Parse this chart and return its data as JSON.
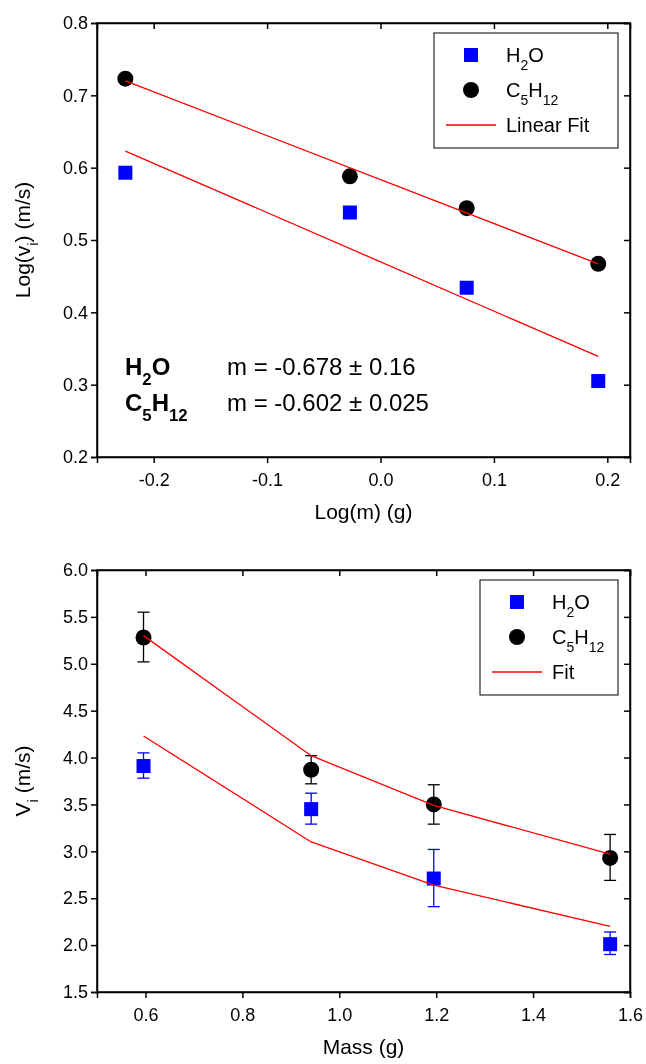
{
  "chart_data": [
    {
      "type": "scatter",
      "xlabel": "Log(m) (g)",
      "ylabel": "Log(v$_{i}$) (m/s)",
      "xlim": [
        -0.25,
        0.22
      ],
      "ylim": [
        0.2,
        0.8
      ],
      "xticks": [
        -0.2,
        -0.1,
        {
          "value": 0,
          "label": "0.0"
        },
        0.1,
        0.2
      ],
      "yticks": [
        0.2,
        0.3,
        0.4,
        0.5,
        0.6,
        0.7,
        0.8
      ],
      "legend": "top right",
      "grid": false,
      "annotations": [
        "H$_{2}$O",
        "m = -0.678 ± 0.16",
        "C$_{5}$H$_{12}$",
        "m = -0.602 ± 0.025"
      ],
      "series": [
        {
          "name": "H$_{2}$O",
          "marker": "square",
          "color": "#0000ff",
          "x": [
            -0.225,
            -0.027,
            0.076,
            0.192
          ],
          "values": [
            0.593,
            0.538,
            0.434,
            0.305
          ]
        },
        {
          "name": "C$_{5}$H$_{12}$",
          "marker": "circle",
          "color": "#000000",
          "x": [
            -0.225,
            -0.027,
            0.076,
            0.192
          ],
          "values": [
            0.723,
            0.588,
            0.544,
            0.467
          ]
        },
        {
          "name": "Linear Fit",
          "type": "line",
          "marker": "none",
          "color": "#ff0000",
          "x": [
            -0.225,
            0.192
          ],
          "values": [
            0.72,
            0.467
          ]
        },
        {
          "type": "line",
          "marker": "none",
          "color": "#ff0000",
          "x": [
            -0.225,
            0.192
          ],
          "values": [
            0.623,
            0.339
          ]
        }
      ]
    },
    {
      "type": "scatter",
      "xlabel": "Mass (g)",
      "ylabel": "V$_{i}$ (m/s)",
      "xlim": [
        0.5,
        1.6
      ],
      "ylim": [
        1.5,
        6
      ],
      "xticks": [
        0.6,
        0.8,
        {
          "value": 1,
          "label": "1.0"
        },
        1.2,
        1.4,
        1.6
      ],
      "yticks": [
        1.5,
        {
          "value": 2,
          "label": "2.0"
        },
        2.5,
        {
          "value": 3,
          "label": "3.0"
        },
        3.5,
        {
          "value": 4,
          "label": "4.0"
        },
        4.5,
        {
          "value": 5,
          "label": "5.0"
        },
        5.5,
        {
          "value": 6,
          "label": "6.0"
        }
      ],
      "legend": "top right",
      "grid": false,
      "series": [
        {
          "name": "H$_{2}$O",
          "marker": "square",
          "color": "#0000ff",
          "x": [
            0.596,
            0.942,
            1.195,
            1.559
          ],
          "values": [
            3.91,
            3.45,
            2.71,
            2.01
          ],
          "errors": [
            [
              3.78,
              4.05
            ],
            [
              3.29,
              3.62
            ],
            [
              2.41,
              3.02
            ],
            [
              1.9,
              2.14
            ]
          ]
        },
        {
          "name": "C$_{5}$H$_{12}$",
          "marker": "circle",
          "color": "#000000",
          "x": [
            0.596,
            0.942,
            1.195,
            1.559
          ],
          "values": [
            5.28,
            3.87,
            3.5,
            2.93
          ],
          "errors": [
            [
              5.02,
              5.55
            ],
            [
              3.72,
              4.02
            ],
            [
              3.29,
              3.71
            ],
            [
              2.69,
              3.18
            ]
          ]
        },
        {
          "name": "Fit",
          "type": "line",
          "marker": "none",
          "color": "#ff0000",
          "x": [
            0.596,
            0.942,
            1.195,
            1.559
          ],
          "values": [
            5.3,
            4.02,
            3.49,
            2.97
          ]
        },
        {
          "type": "line",
          "marker": "none",
          "color": "#ff0000",
          "x": [
            0.596,
            0.942,
            1.195,
            1.559
          ],
          "values": [
            4.23,
            3.1,
            2.64,
            2.2
          ]
        }
      ]
    }
  ]
}
